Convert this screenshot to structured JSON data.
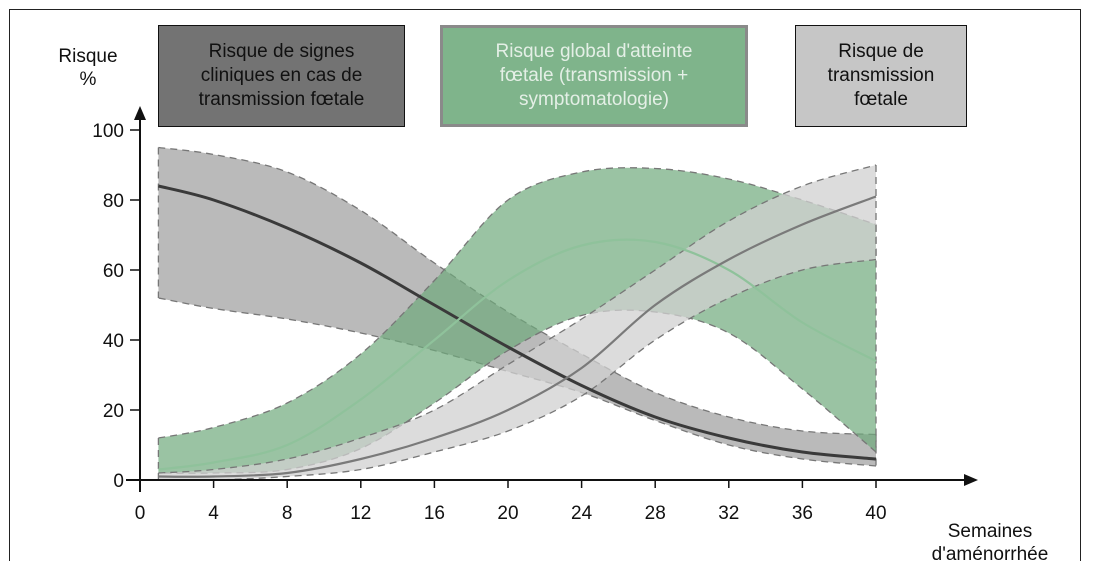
{
  "chart_data": {
    "type": "area",
    "ylabel_lines": [
      "Risque",
      "%"
    ],
    "xlabel_lines": [
      "Semaines",
      "d'aménorrhée"
    ],
    "xlim": [
      0,
      40
    ],
    "ylim": [
      0,
      100
    ],
    "x_ticks": [
      0,
      4,
      8,
      12,
      16,
      20,
      24,
      28,
      32,
      36,
      40
    ],
    "y_ticks": [
      0,
      20,
      40,
      60,
      80,
      100
    ],
    "grid": false,
    "legend": [
      {
        "key": "signes",
        "label": "Risque de signes\ncliniques en cas de\ntransmission fœtale",
        "color": "#737373"
      },
      {
        "key": "global",
        "label": "Risque global d'atteinte\nfœtale (transmission +\nsymptomatologie)",
        "color": "#7fb48b"
      },
      {
        "key": "transmission",
        "label": "Risque de\ntransmission\nfœtale",
        "color": "#c6c6c6"
      }
    ],
    "x": [
      1,
      4,
      8,
      12,
      16,
      20,
      24,
      28,
      32,
      36,
      40
    ],
    "series": [
      {
        "key": "signes",
        "fill": "#8c8c8c",
        "fill_opacity": 0.6,
        "line": "#3a3a3a",
        "center": [
          84,
          80,
          72,
          62,
          50,
          38,
          27,
          18,
          12,
          8,
          6
        ],
        "upper": [
          95,
          93,
          88,
          77,
          62,
          48,
          36,
          25,
          18,
          14,
          13
        ],
        "lower": [
          52,
          49,
          46,
          42,
          37,
          31,
          25,
          17,
          10,
          6,
          4
        ]
      },
      {
        "key": "global",
        "fill": "#6fa97c",
        "fill_opacity": 0.7,
        "line": "#8fc29b",
        "center": [
          3,
          5,
          10,
          23,
          40,
          57,
          67,
          68,
          60,
          45,
          34
        ],
        "upper": [
          12,
          15,
          22,
          36,
          57,
          80,
          88,
          89,
          86,
          80,
          73
        ],
        "lower": [
          2,
          2,
          3,
          9,
          22,
          37,
          47,
          48,
          42,
          26,
          8
        ]
      },
      {
        "key": "transmission",
        "fill": "#d0d0d0",
        "fill_opacity": 0.75,
        "line": "#7a7a7a",
        "center": [
          1,
          1,
          2,
          6,
          12,
          20,
          32,
          50,
          63,
          73,
          81
        ],
        "upper": [
          2,
          3,
          6,
          12,
          20,
          33,
          46,
          60,
          74,
          84,
          90
        ],
        "lower": [
          0,
          0,
          1,
          3,
          8,
          14,
          24,
          40,
          52,
          60,
          63
        ]
      }
    ]
  }
}
